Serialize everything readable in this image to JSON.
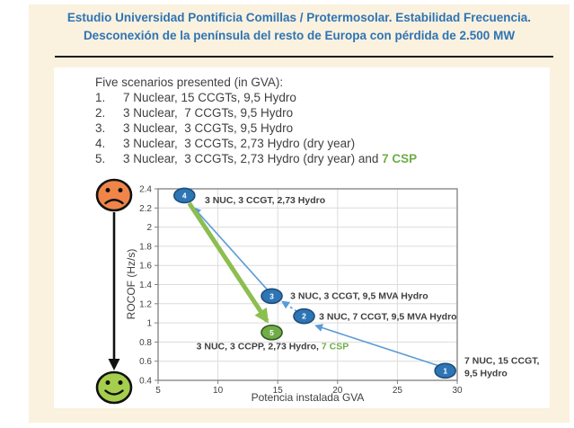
{
  "page": {
    "header": {
      "line1": "Estudio Universidad Pontificia Comillas / Protermosolar. Estabilidad Frecuencia.",
      "line2": "Desconexión de la península del resto de Europa con pérdida de 2.500 MW"
    },
    "colors": {
      "slide_bg": "#FAF1DE",
      "header_text": "#2E74B5",
      "accent_green": "#70AD47",
      "arrow_blue": "#5B9BD5",
      "arrow_green": "#8CBE50",
      "face_bad": "#F0854A",
      "face_good": "#A6CE4D"
    },
    "scenarios": {
      "title": "Five scenarios presented (in GVA):",
      "items": [
        {
          "num": "1.",
          "text": "7 Nuclear, 15 CCGTs, 9,5 Hydro",
          "csp": ""
        },
        {
          "num": "2.",
          "text": "3 Nuclear,  7 CCGTs, 9,5 Hydro",
          "csp": ""
        },
        {
          "num": "3.",
          "text": "3 Nuclear,  3 CCGTs, 9,5 Hydro",
          "csp": ""
        },
        {
          "num": "4.",
          "text": "3 Nuclear,  3 CCGTs, 2,73 Hydro (dry year)",
          "csp": ""
        },
        {
          "num": "5.",
          "text": "3 Nuclear,  3 CCGTs, 2,73 Hydro (dry year) and ",
          "csp": "7 CSP"
        }
      ]
    },
    "mood_scale": {
      "top": "sad-face",
      "bottom": "happy-face",
      "direction": "worse-to-better"
    }
  },
  "chart_data": {
    "type": "scatter",
    "title": "",
    "xlabel": "Potencia instalada GVA",
    "ylabel": "ROCOF (Hz/s)",
    "xlim": [
      5,
      30
    ],
    "ylim": [
      0.4,
      2.4
    ],
    "xticks": [
      "5",
      "10",
      "15",
      "20",
      "25",
      "30"
    ],
    "yticks": [
      "0.4",
      "0.6",
      "0.8",
      "1",
      "1.2",
      "1.4",
      "1.6",
      "1.8",
      "2",
      "2.2",
      "2.4"
    ],
    "grid": true,
    "legend": "none",
    "points": [
      {
        "id": "1",
        "x": 29.0,
        "y": 0.5,
        "fill": "#2E75B6",
        "stroke": "#1F4E79",
        "label": "7 NUC, 15 CCGT, 9,5 Hydro"
      },
      {
        "id": "2",
        "x": 17.2,
        "y": 1.07,
        "fill": "#2E75B6",
        "stroke": "#1F4E79",
        "label": "3 NUC, 7 CCGT, 9,5 MVA Hydro"
      },
      {
        "id": "3",
        "x": 14.5,
        "y": 1.28,
        "fill": "#2E75B6",
        "stroke": "#1F4E79",
        "label": "3 NUC, 3 CCGT, 9,5 MVA Hydro"
      },
      {
        "id": "4",
        "x": 7.2,
        "y": 2.33,
        "fill": "#2E75B6",
        "stroke": "#1F4E79",
        "label": "3 NUC, 3 CCGT, 2,73 Hydro"
      },
      {
        "id": "5",
        "x": 14.5,
        "y": 0.9,
        "fill": "#70AD47",
        "stroke": "#375623",
        "label": "3 NUC, 3 CCPP, 2,73 Hydro, 7 CSP"
      }
    ],
    "arrows": [
      {
        "x1": 28.5,
        "y1": 0.55,
        "x2": 18.2,
        "y2": 0.97,
        "color": "#5B9BD5",
        "width": 1.6,
        "dash": ""
      },
      {
        "x1": 16.6,
        "y1": 1.12,
        "x2": 15.4,
        "y2": 1.22,
        "color": "#5B9BD5",
        "width": 1.6,
        "dash": "3 3"
      },
      {
        "x1": 14.1,
        "y1": 1.35,
        "x2": 8.0,
        "y2": 2.2,
        "color": "#5B9BD5",
        "width": 1.6,
        "dash": ""
      },
      {
        "x1": 7.6,
        "y1": 2.25,
        "x2": 14.1,
        "y2": 1.02,
        "color": "#8CBE50",
        "width": 5,
        "dash": ""
      }
    ],
    "annotations": [
      {
        "x": 8.9,
        "y": 2.28,
        "lines": [
          [
            {
              "t": "3 NUC, 3 CCGT, 2,73 Hydro"
            }
          ]
        ]
      },
      {
        "x": 16.05,
        "y": 1.28,
        "lines": [
          [
            {
              "t": "3 NUC, 3 CCGT, 9,5 MVA Hydro"
            }
          ]
        ]
      },
      {
        "x": 18.45,
        "y": 1.06,
        "lines": [
          [
            {
              "t": "3 NUC, 7 CCGT, 9,5 MVA Hydro"
            }
          ]
        ]
      },
      {
        "x": 8.2,
        "y": 0.75,
        "lines": [
          [
            {
              "t": "3 NUC, 3 CCPP, 2,73 Hydro, "
            },
            {
              "t": "7 CSP",
              "c": "#70AD47"
            }
          ]
        ]
      },
      {
        "x": 30.6,
        "y": 0.6,
        "lines": [
          [
            {
              "t": "7 NUC, 15 CCGT,"
            }
          ],
          [
            {
              "t": "9,5 Hydro"
            }
          ]
        ]
      }
    ]
  }
}
